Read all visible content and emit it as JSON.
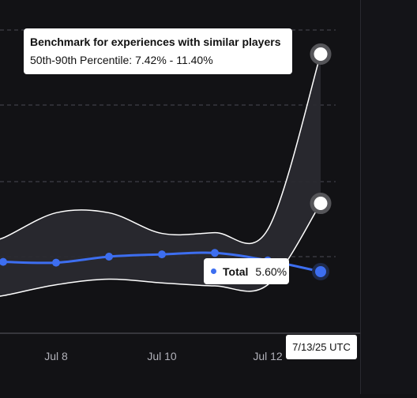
{
  "chart_data": {
    "type": "line",
    "x_ticks": [
      "Jul 8",
      "Jul 10",
      "Jul 12"
    ],
    "series": [
      {
        "name": "Total",
        "color": "#3d6ef0",
        "points": [
          [
            6.6,
            5.88
          ],
          [
            7.0,
            5.86
          ],
          [
            8.0,
            5.84
          ],
          [
            9.0,
            6.0
          ],
          [
            10.0,
            6.06
          ],
          [
            11.0,
            6.1
          ],
          [
            12.0,
            5.9
          ],
          [
            13.0,
            5.6
          ]
        ]
      }
    ],
    "benchmark_band": {
      "name": "Benchmark for experiences with similar players",
      "upper": [
        [
          6.6,
          6.4
        ],
        [
          7.0,
          6.5
        ],
        [
          8.0,
          7.17
        ],
        [
          9.0,
          7.17
        ],
        [
          10.0,
          6.62
        ],
        [
          11.0,
          6.64
        ],
        [
          12.0,
          6.72
        ],
        [
          13.0,
          11.4
        ]
      ],
      "lower": [
        [
          6.6,
          4.9
        ],
        [
          7.0,
          4.96
        ],
        [
          8.0,
          5.25
        ],
        [
          9.0,
          5.4
        ],
        [
          10.0,
          5.3
        ],
        [
          11.0,
          5.22
        ],
        [
          12.0,
          5.25
        ],
        [
          13.0,
          7.42
        ]
      ]
    }
  },
  "tooltip": {
    "title": "Benchmark for experiences with similar players",
    "subtitle": "50th-90th Percentile: 7.42% - 11.40%"
  },
  "hover_label": {
    "series": "Total",
    "value": "5.60%",
    "color": "#3d6ef0"
  },
  "date_label": "7/13/25 UTC"
}
